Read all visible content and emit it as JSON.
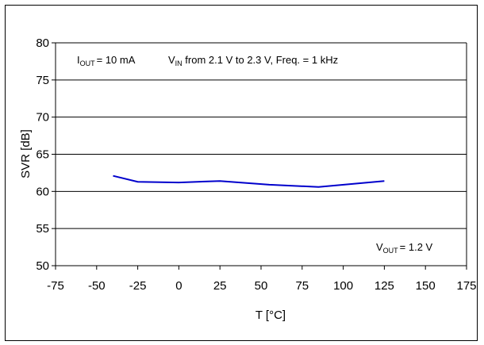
{
  "chart_data": {
    "type": "line",
    "title": "",
    "xlabel": "T [°C]",
    "ylabel": "SVR [dB]",
    "xlim": [
      -75,
      175
    ],
    "ylim": [
      50,
      80
    ],
    "x_ticks": [
      "-75",
      "-50",
      "-25",
      "0",
      "25",
      "50",
      "75",
      "100",
      "125",
      "150",
      "175"
    ],
    "y_ticks": [
      "50",
      "55",
      "60",
      "65",
      "70",
      "75",
      "80"
    ],
    "grid": "horizontal",
    "series": [
      {
        "color": "#0000cc",
        "x": [
          -40,
          -25,
          0,
          25,
          55,
          85,
          125
        ],
        "y": [
          62.1,
          61.3,
          61.2,
          61.4,
          60.9,
          60.6,
          61.4
        ]
      }
    ],
    "annotations": {
      "conditions": {
        "iout_main": "I",
        "iout_sub": "OUT",
        "iout_value": "= 10 mA",
        "vin_main": "V",
        "vin_sub": "IN",
        "vin_value": " from 2.1 V to 2.3 V, Freq. = 1 kHz"
      },
      "vout": {
        "main": "V",
        "sub": "OUT",
        "value": "= 1.2 V"
      }
    }
  }
}
